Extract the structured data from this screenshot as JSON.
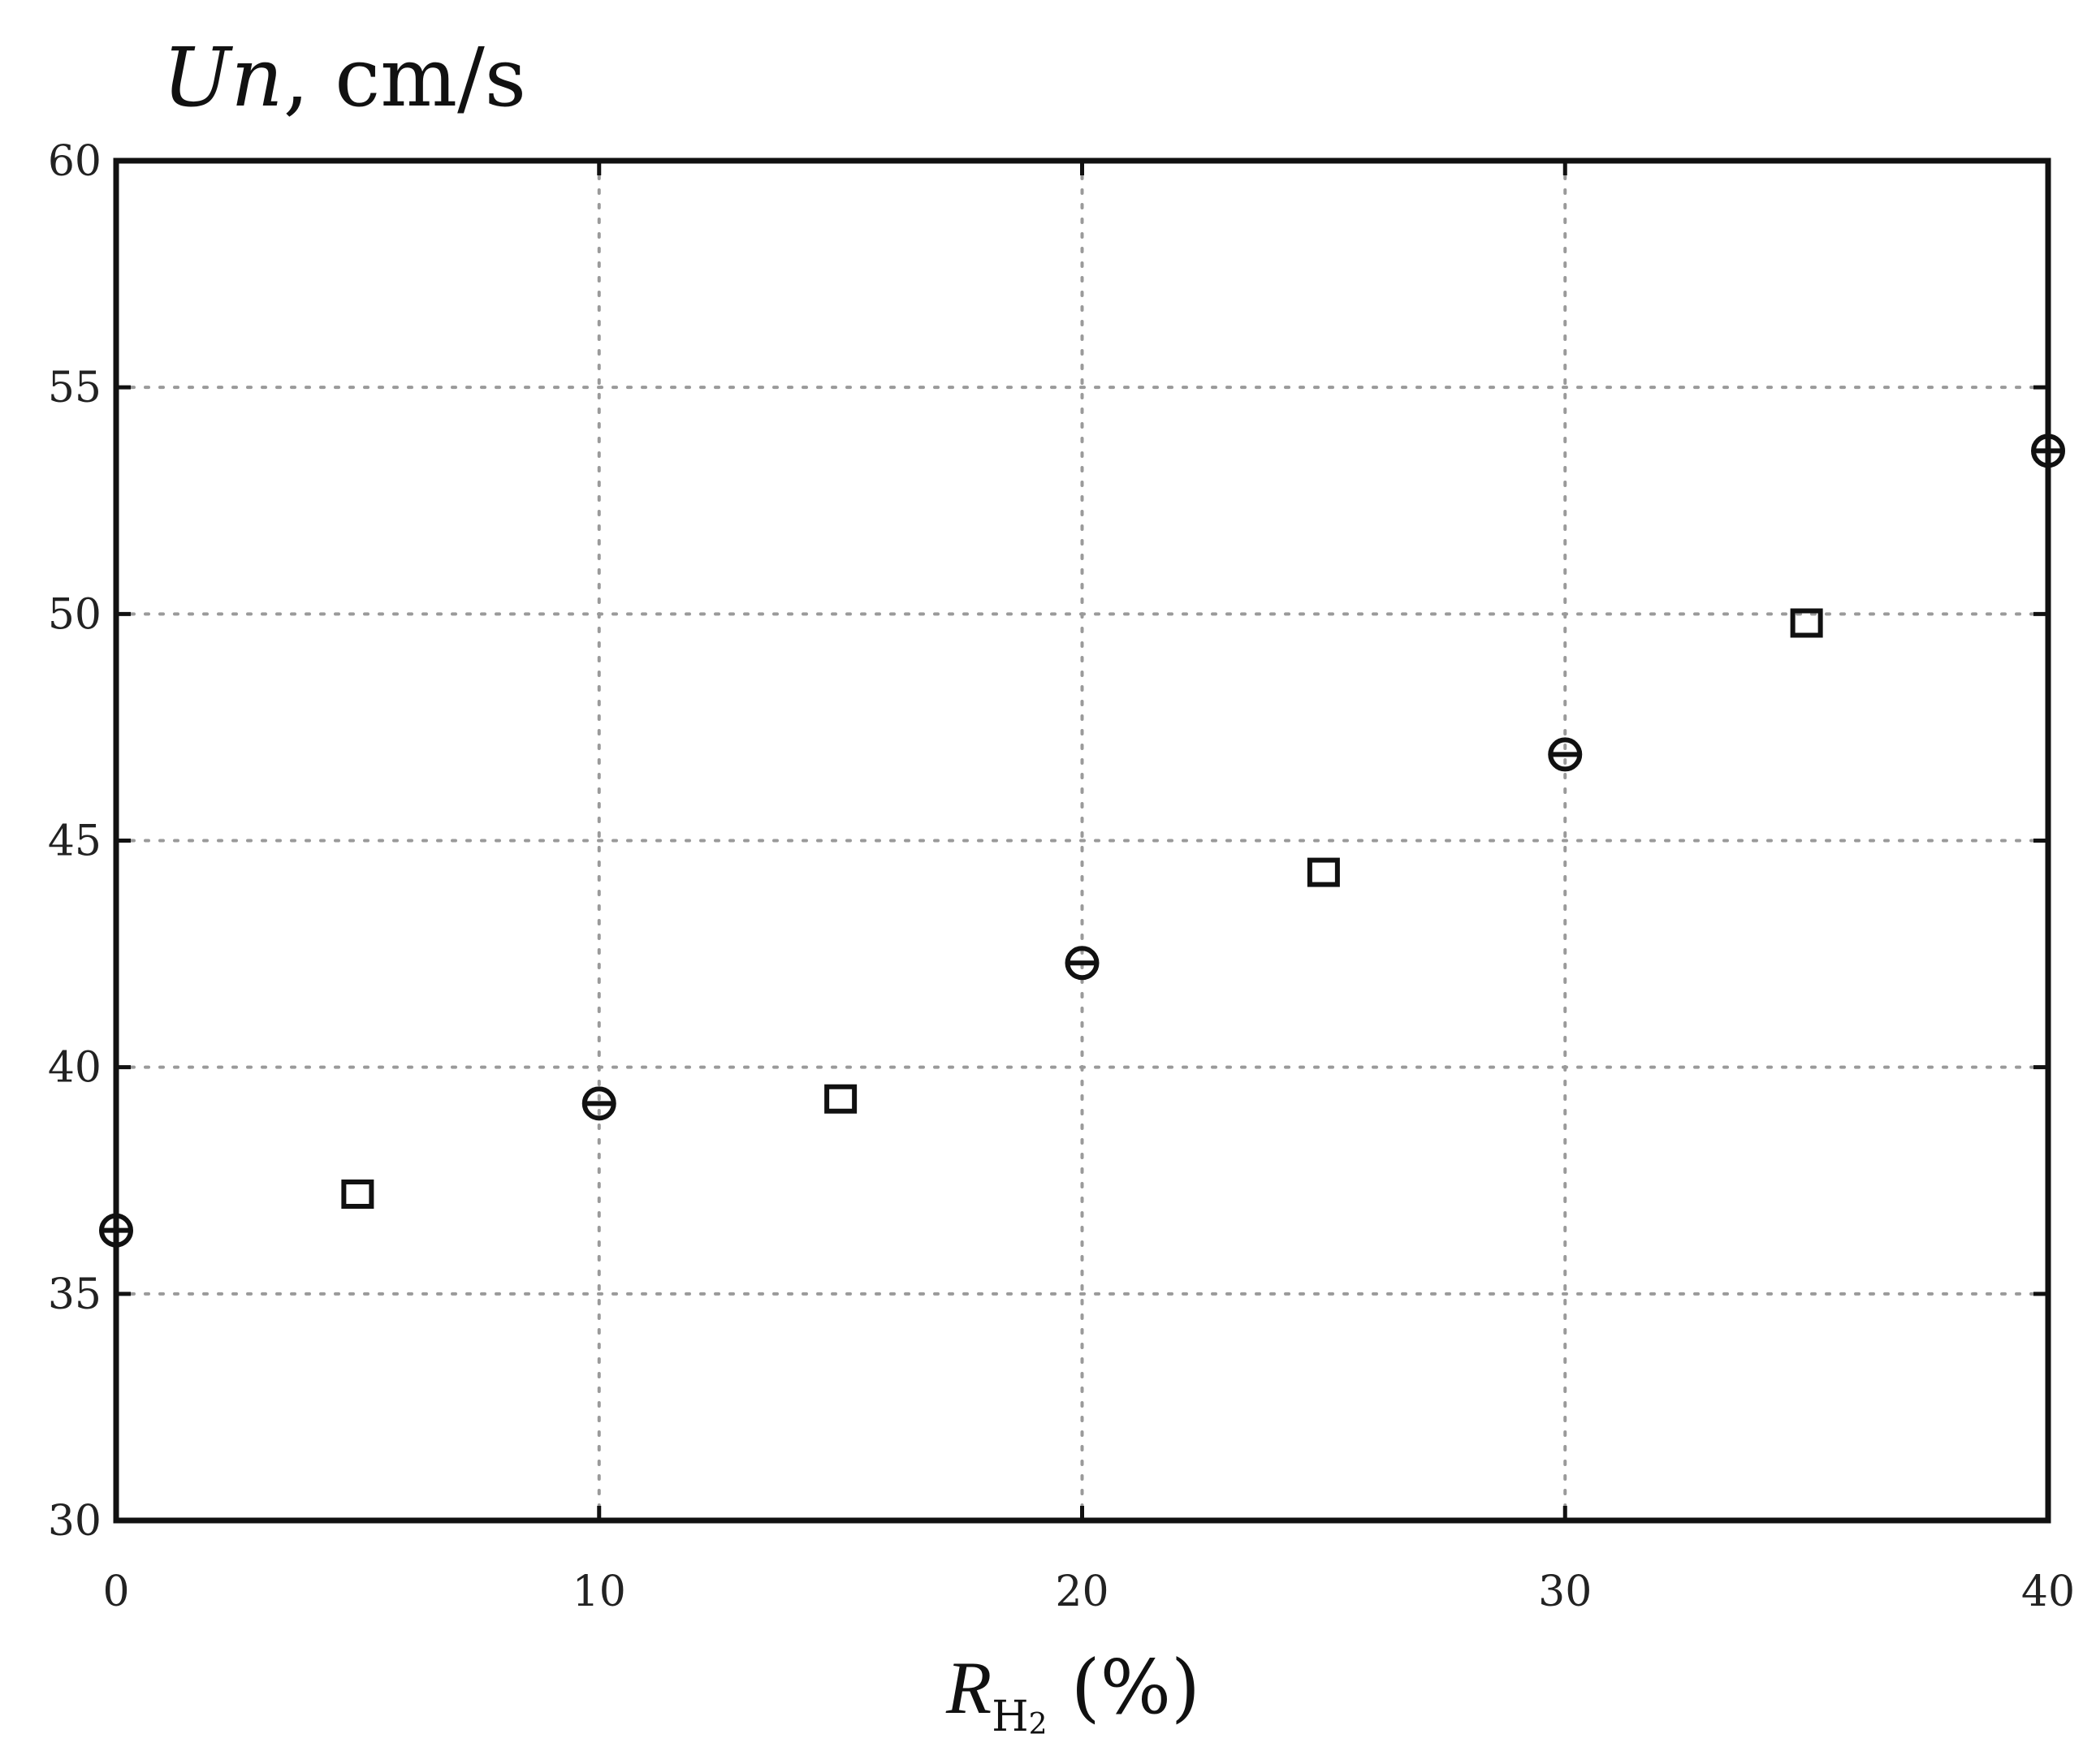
{
  "chart_data": {
    "type": "scatter",
    "title": "",
    "ylabel": {
      "italic": "Un",
      "rest": ", cm/s"
    },
    "xlabel": {
      "symbol": "R",
      "subscript_main": "H",
      "subscript_small": "2",
      "rest": " (%)"
    },
    "xlim": [
      0,
      40
    ],
    "ylim": [
      30,
      60
    ],
    "x_ticks": [
      0,
      10,
      20,
      30,
      40
    ],
    "y_ticks": [
      30,
      35,
      40,
      45,
      50,
      55,
      60
    ],
    "x_tick_labels": [
      "0",
      "10",
      "20",
      "30",
      "40"
    ],
    "y_tick_labels": [
      "30",
      "35",
      "40",
      "45",
      "50",
      "55",
      "60"
    ],
    "grid": true,
    "legend": "none",
    "series": [
      {
        "marker": "circle",
        "color": "#111111",
        "x": [
          0,
          10,
          20,
          30,
          40
        ],
        "y": [
          36.4,
          39.2,
          42.3,
          46.9,
          53.6
        ]
      },
      {
        "marker": "square",
        "color": "#111111",
        "x": [
          5,
          15,
          25,
          35
        ],
        "y": [
          37.2,
          39.3,
          44.3,
          49.8
        ]
      }
    ]
  }
}
